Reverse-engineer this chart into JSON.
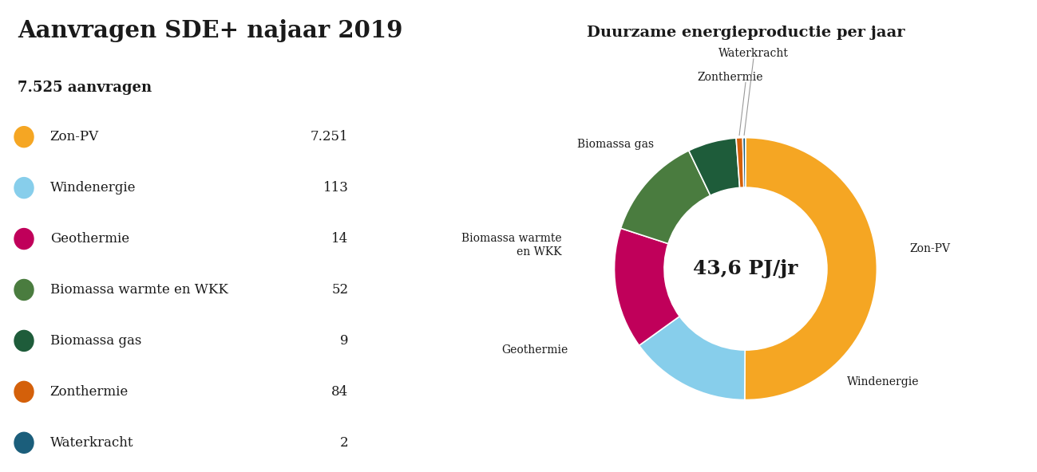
{
  "title_left": "Aanvragen SDE+ najaar 2019",
  "subtitle_left": "7.525 aanvragen",
  "title_right": "Duurzame energieproductie per jaar",
  "center_text": "43,6 PJ/jr",
  "categories": [
    "Zon-PV",
    "Windenergie",
    "Geothermie",
    "Biomassa warmte en WKK",
    "Biomassa gas",
    "Zonthermie",
    "Waterkracht"
  ],
  "counts_display": [
    "7.251",
    "113",
    "14",
    "52",
    "9",
    "84",
    "2"
  ],
  "colors": [
    "#F5A623",
    "#87CEEB",
    "#C0005A",
    "#4A7C3F",
    "#1E5C3A",
    "#D4600A",
    "#1B5E7B"
  ],
  "pie_values": [
    21.8,
    6.5,
    6.5,
    5.6,
    2.6,
    0.35,
    0.15
  ],
  "background_color": "#FFFFFF"
}
